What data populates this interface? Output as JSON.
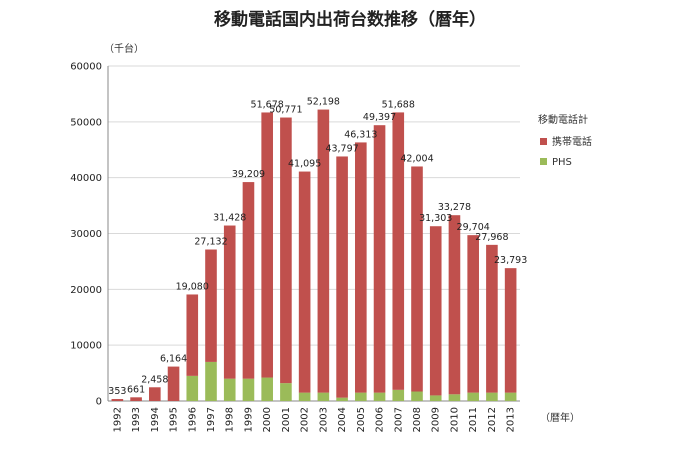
{
  "chart_data": {
    "type": "bar",
    "stacked": true,
    "title": "移動電話国内出荷台数推移（暦年）",
    "y_unit_label": "（千台）",
    "x_unit_label": "（暦年）",
    "ylim": [
      0,
      60000
    ],
    "yticks": [
      0,
      10000,
      20000,
      30000,
      40000,
      50000,
      60000
    ],
    "grid": true,
    "legend_position": "right",
    "legend_title": "移動電話計",
    "categories": [
      "1992",
      "1993",
      "1994",
      "1995",
      "1996",
      "1997",
      "1998",
      "1999",
      "2000",
      "2001",
      "2002",
      "2003",
      "2004",
      "2005",
      "2006",
      "2007",
      "2008",
      "2009",
      "2010",
      "2011",
      "2012",
      "2013"
    ],
    "totals": [
      353,
      661,
      2458,
      6164,
      19080,
      27132,
      31428,
      39209,
      51678,
      50771,
      41095,
      52198,
      43797,
      46313,
      49397,
      51688,
      42004,
      31303,
      33278,
      29704,
      27968,
      23793
    ],
    "total_labels": [
      "353",
      "661",
      "2,458",
      "6,164",
      "19,080",
      "27,132",
      "31,428",
      "39,209",
      "51,678",
      "50,771",
      "41,095",
      "52,198",
      "43,797",
      "46,313",
      "49,397",
      "51,688",
      "42,004",
      "31,303",
      "33,278",
      "29,704",
      "27,968",
      "23,793"
    ],
    "series": [
      {
        "name": "携帯電話",
        "color": "#c0504d",
        "values": [
          353,
          661,
          2458,
          6164,
          14580,
          20132,
          27428,
          35209,
          47478,
          47571,
          39595,
          50698,
          43197,
          44813,
          47897,
          49688,
          40304,
          30303,
          32078,
          28204,
          26468,
          22293
        ]
      },
      {
        "name": "PHS",
        "color": "#9bbb59",
        "values": [
          0,
          0,
          0,
          0,
          4500,
          7000,
          4000,
          4000,
          4200,
          3200,
          1500,
          1500,
          600,
          1500,
          1500,
          2000,
          1700,
          1000,
          1200,
          1500,
          1500,
          1500
        ]
      }
    ]
  }
}
